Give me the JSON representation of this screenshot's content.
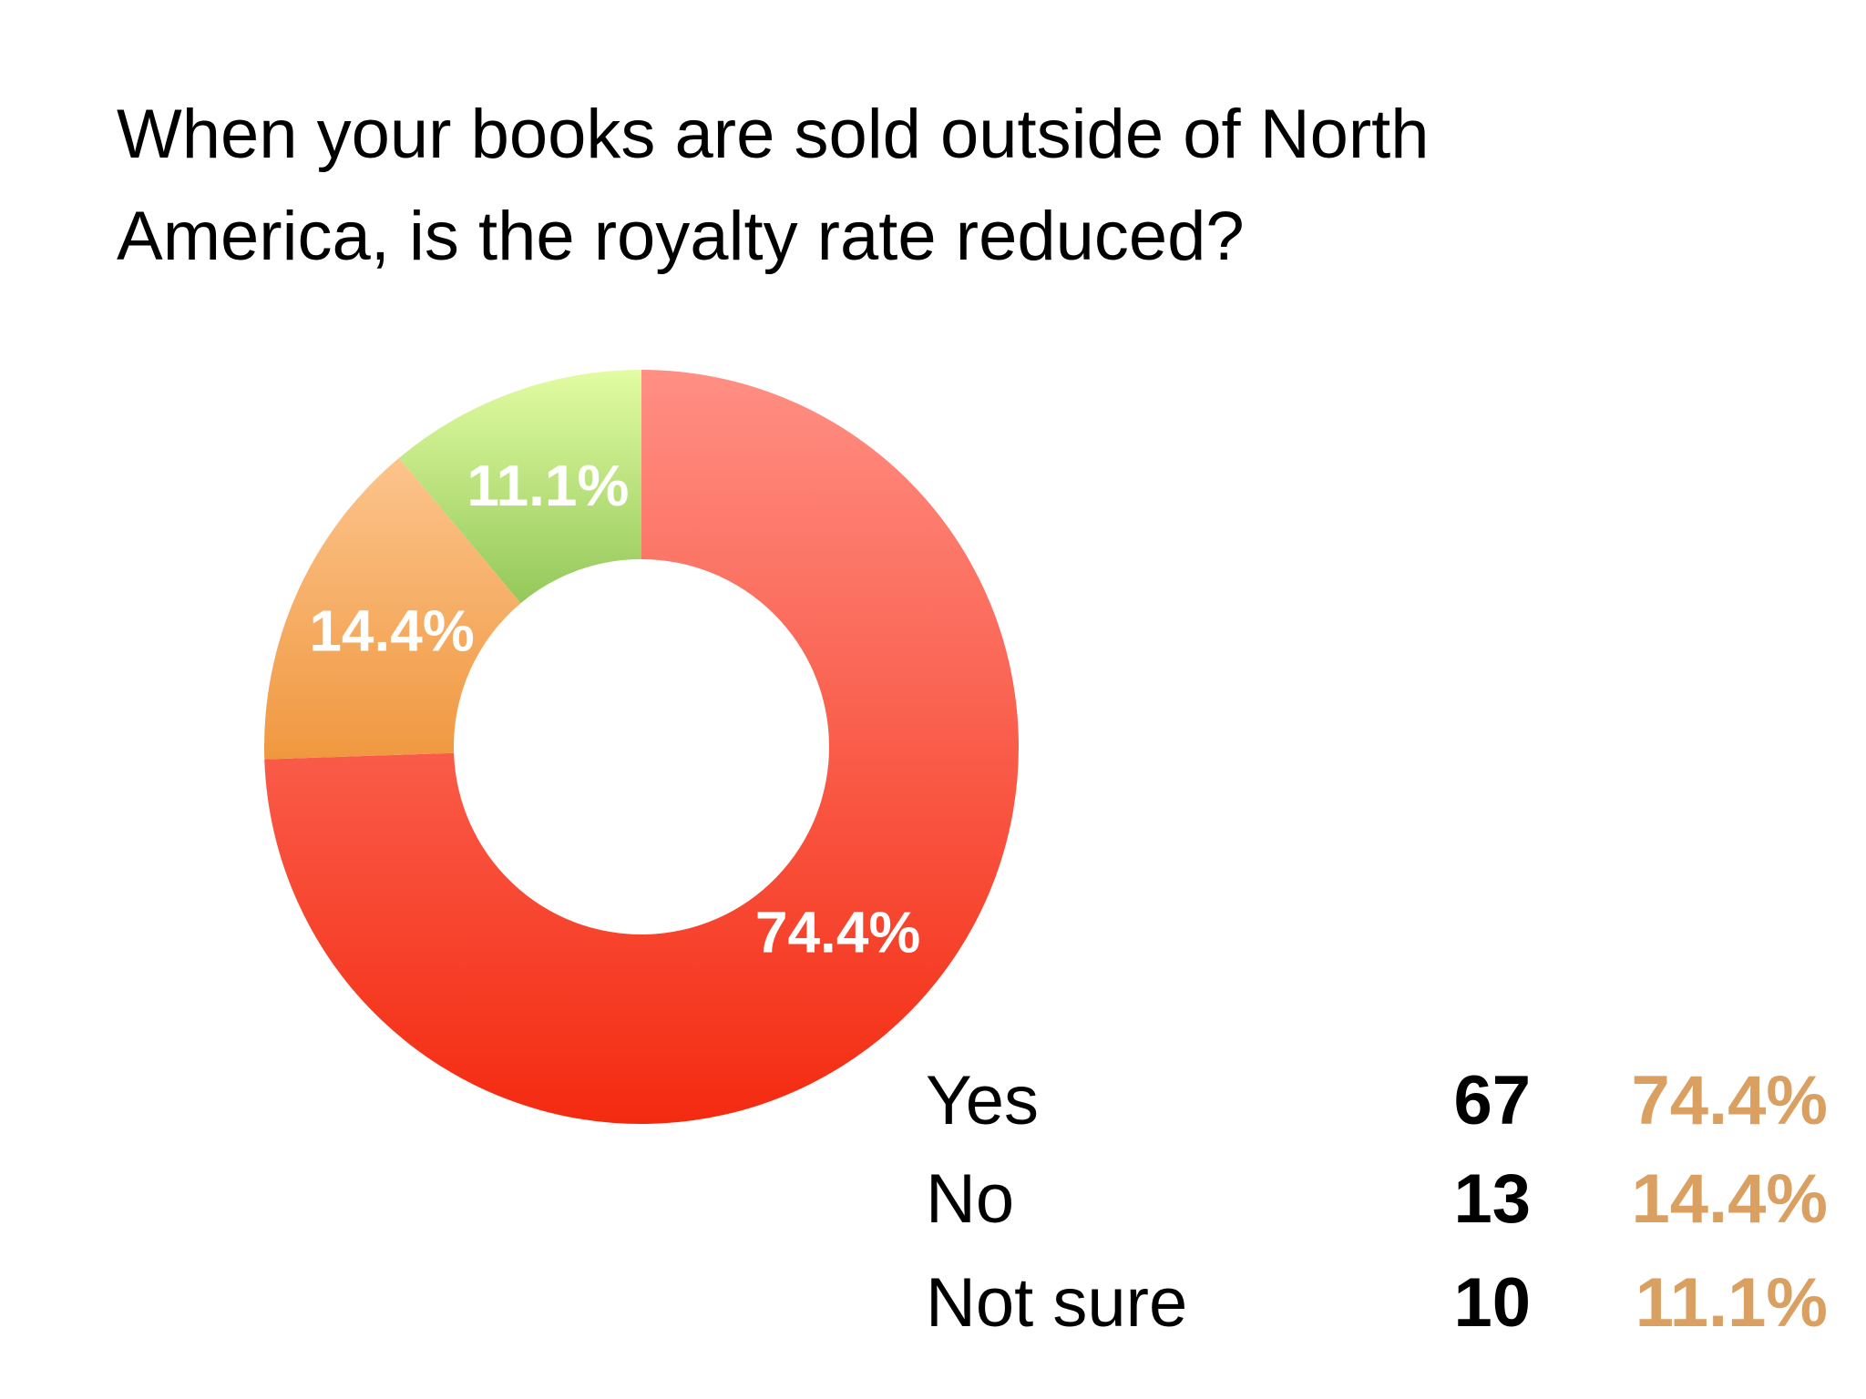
{
  "title_lines": [
    "When your books are sold outside of North",
    "America, is the royalty rate reduced?"
  ],
  "chart_data": {
    "type": "pie",
    "donut": true,
    "categories": [
      "Yes",
      "No",
      "Not sure"
    ],
    "counts": [
      67,
      13,
      10
    ],
    "values": [
      74.4,
      14.4,
      11.1
    ],
    "data_labels": [
      "74.4%",
      "14.4%",
      "11.1%"
    ],
    "colors": [
      "#f5483a",
      "#f6a85a",
      "#b6df86"
    ]
  },
  "table": {
    "rows": [
      {
        "label": "Yes",
        "count": "67",
        "percent": "74.4%"
      },
      {
        "label": "No",
        "count": "13",
        "percent": "14.4%"
      },
      {
        "label": "Not sure",
        "count": "10",
        "percent": "11.1%"
      }
    ],
    "percent_color": "#d9a062"
  }
}
